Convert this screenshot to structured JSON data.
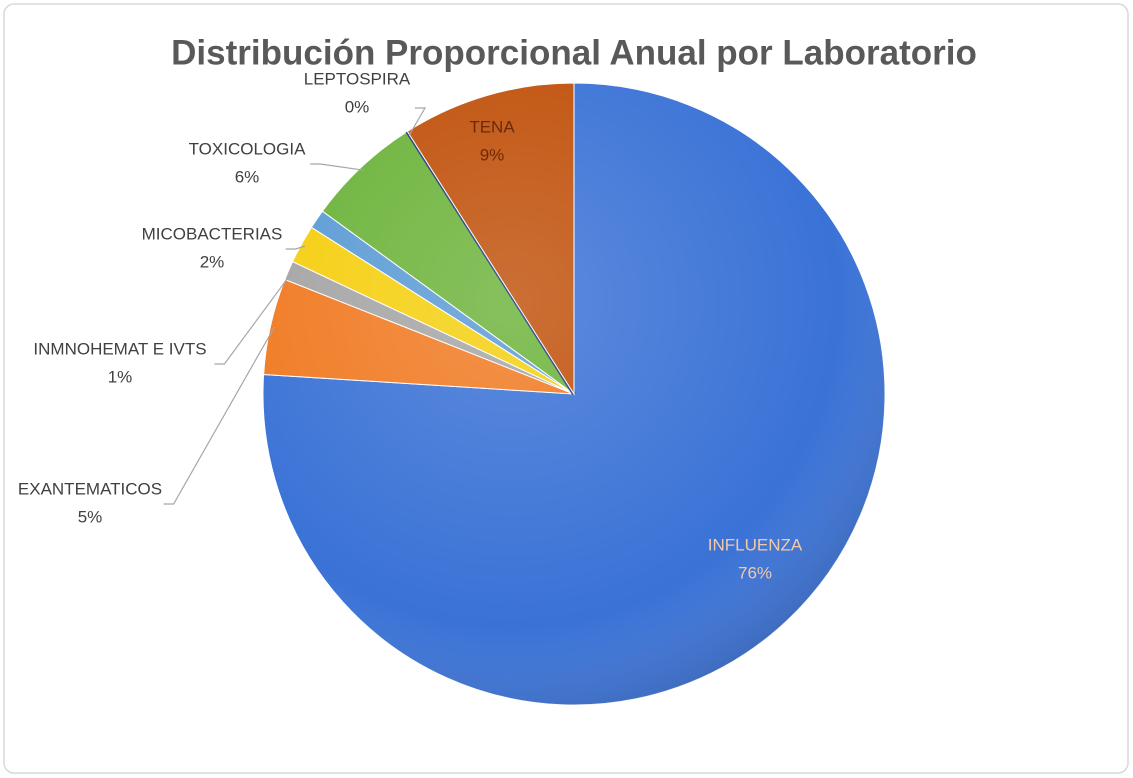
{
  "chart_data": {
    "type": "pie",
    "title": "Distribución Proporcional Anual por Laboratorio",
    "categories": [
      "INFLUENZA",
      "EXANTEMATICOS",
      "INMNOHEMAT E IVTS",
      "MICOBACTERIAS",
      null,
      "TOXICOLOGIA",
      "LEPTOSPIRA",
      "TENA"
    ],
    "values": [
      76,
      5,
      1,
      2,
      1,
      6,
      0,
      9
    ],
    "value_labels": [
      "76%",
      "5%",
      "1%",
      "2%",
      null,
      "6%",
      "0%",
      "9%"
    ],
    "colors": [
      "#3a72d6",
      "#f07a22",
      "#a5a5a5",
      "#f5cf0f",
      "#5b9bd5",
      "#6cb33a",
      "#1f3a7a",
      "#c0500a"
    ]
  }
}
